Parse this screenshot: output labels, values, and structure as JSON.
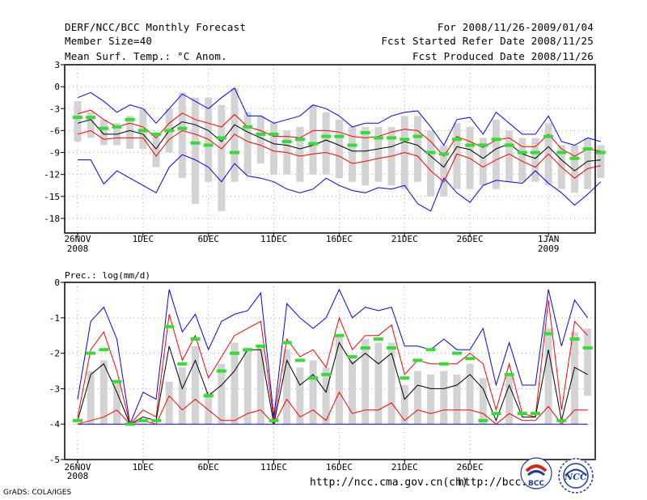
{
  "header": {
    "title": "DERF/NCC/BCC Monthly Forecast",
    "member_size": "Member Size=40",
    "variable": "Mean Surf. Temp.: °C Anom.",
    "period": "For 2008/11/26-2009/01/04",
    "started": "Fcst Started Refer Date 2008/11/25",
    "produced": "Fcst Produced Date 2008/11/26"
  },
  "footer": {
    "grads": "GrADS: COLA/IGES",
    "url1": "http://ncc.cma.gov.cn(ch)",
    "url2": "http://bcc.c",
    "logo_bcc": "BCC",
    "logo_ncc": "NCC"
  },
  "colors": {
    "max_min": "#0000ff",
    "quartile": "#ff0000",
    "median": "#000000",
    "ensemble_mean": "#33dd33",
    "box": "#d3d3d3"
  },
  "chart_data": [
    {
      "type": "box-line",
      "title": "Mean Surf. Temp.: °C Anom.",
      "ylim": [
        -20,
        3
      ],
      "yticks": [
        3,
        0,
        -3,
        -6,
        -9,
        -12,
        -15,
        -18
      ],
      "xticks": [
        {
          "day": 0,
          "label": "26NOV",
          "sub": "2008"
        },
        {
          "day": 5,
          "label": "1DEC"
        },
        {
          "day": 10,
          "label": "6DEC"
        },
        {
          "day": 15,
          "label": "11DEC"
        },
        {
          "day": 20,
          "label": "16DEC"
        },
        {
          "day": 25,
          "label": "21DEC"
        },
        {
          "day": 30,
          "label": "26DEC"
        },
        {
          "day": 36,
          "label": "1JAN",
          "sub": "2009"
        }
      ],
      "days": 40,
      "series": [
        {
          "name": "max",
          "values": [
            -1.5,
            -0.8,
            -2,
            -3.5,
            -2.5,
            -3,
            -5,
            -3,
            -1,
            -2,
            -3,
            -1.5,
            -0.2,
            -4,
            -4,
            -5,
            -4.5,
            -4,
            -2.5,
            -3,
            -4,
            -5.5,
            -5,
            -5,
            -4,
            -3.5,
            -3.3,
            -5.5,
            -8,
            -4.5,
            -4.2,
            -6.5,
            -3.5,
            -5,
            -6.5,
            -6.5,
            -4,
            -7.5,
            -8,
            -7,
            -7.5
          ]
        },
        {
          "name": "q75",
          "values": [
            -3.7,
            -3.2,
            -4.5,
            -5.5,
            -5,
            -5.5,
            -7,
            -5,
            -3.6,
            -4.5,
            -5,
            -5.5,
            -3.8,
            -5.5,
            -6,
            -6.8,
            -6.8,
            -7,
            -6,
            -6,
            -6.2,
            -6.8,
            -7,
            -6.8,
            -6.2,
            -5.8,
            -6,
            -7.5,
            -9.5,
            -6.8,
            -7.5,
            -8.3,
            -7.3,
            -7,
            -8.2,
            -8.2,
            -6.5,
            -8.5,
            -9.5,
            -8.5,
            -8.8
          ]
        },
        {
          "name": "median",
          "values": [
            -5,
            -4.5,
            -6.5,
            -6.5,
            -6,
            -6.5,
            -8.5,
            -6,
            -4.8,
            -5.2,
            -6,
            -7.5,
            -5.2,
            -6.2,
            -7,
            -7.8,
            -8,
            -8.5,
            -8,
            -7.3,
            -8,
            -8.8,
            -8.8,
            -8.5,
            -8.2,
            -7.5,
            -8,
            -9.5,
            -11,
            -8.2,
            -8.6,
            -9.8,
            -8.5,
            -7.8,
            -9.2,
            -9.8,
            -8.2,
            -10,
            -11.5,
            -10.2,
            -10
          ]
        },
        {
          "name": "q25",
          "values": [
            -6.5,
            -6,
            -7.2,
            -7,
            -7,
            -7,
            -9.5,
            -7.2,
            -6,
            -6.5,
            -7.2,
            -8.5,
            -6.5,
            -7.5,
            -8,
            -8.8,
            -9,
            -9.5,
            -9.2,
            -9,
            -9.5,
            -10.5,
            -10.2,
            -9.8,
            -9.5,
            -9,
            -9.5,
            -11.5,
            -13,
            -9.2,
            -9.8,
            -11,
            -10,
            -9.2,
            -10.2,
            -11,
            -9.2,
            -11,
            -12.5,
            -11.2,
            -10.8
          ]
        },
        {
          "name": "min",
          "values": [
            -10,
            -10,
            -13.3,
            -11.5,
            -12.5,
            -13.5,
            -14.5,
            -11,
            -9.3,
            -10,
            -11,
            -13,
            -10.5,
            -12.2,
            -12.5,
            -13,
            -14,
            -14.5,
            -14,
            -12.5,
            -13.5,
            -14.2,
            -14.5,
            -13.8,
            -14,
            -13.5,
            -16,
            -17,
            -12.5,
            -14.5,
            -15.8,
            -13.5,
            -12.8,
            -13,
            -13.2,
            -11.5,
            -13.2,
            -14.5,
            -16.2,
            -14.7,
            -13
          ]
        },
        {
          "name": "ensemble_mean",
          "values": [
            -4.2,
            -4.2,
            -5.7,
            -5.5,
            -4.5,
            -6,
            -6.5,
            -6,
            -5.7,
            -7.7,
            -8,
            -7,
            -9,
            -5.5,
            -6.5,
            -6.5,
            -7.5,
            -7.2,
            -7.8,
            -6.8,
            -6.8,
            -8,
            -6.3,
            -7,
            -7,
            -7.2,
            -6.8,
            -9,
            -9.2,
            -7.2,
            -8,
            -8,
            -7.2,
            -8,
            -9,
            -9,
            -6.8,
            -9,
            -9.8,
            -8.5,
            -9
          ]
        },
        {
          "name": "box_top",
          "values": [
            -2,
            -3.5,
            -4.5,
            -5,
            -4,
            -3,
            -6.5,
            -3,
            -0.8,
            -1.5,
            -1.5,
            -2.5,
            -0.2,
            -3.5,
            -4,
            -5,
            -6,
            -5.5,
            -2.5,
            -3.5,
            -4.5,
            -5.5,
            -5.5,
            -5.5,
            -5.5,
            -4,
            -4,
            -6,
            -8,
            -5,
            -5.5,
            -7,
            -4.5,
            -6,
            -7,
            -7,
            -5,
            -8,
            -8,
            -7,
            -8
          ]
        },
        {
          "name": "box_bottom",
          "values": [
            -7.5,
            -7,
            -8,
            -8,
            -8.5,
            -8.5,
            -11,
            -9,
            -12.5,
            -16,
            -13,
            -17,
            -13,
            -12,
            -10.5,
            -12,
            -12,
            -13,
            -12,
            -12,
            -12.5,
            -13,
            -13.5,
            -13,
            -13.5,
            -14,
            -13,
            -15,
            -15,
            -14,
            -14,
            -13.5,
            -14,
            -13,
            -13,
            -13,
            -13.5,
            -14,
            -14.5,
            -14,
            -12.5
          ]
        }
      ]
    },
    {
      "type": "box-line",
      "title": "Prec.: log(mm/d)",
      "ylim": [
        -5,
        0
      ],
      "yticks": [
        0,
        -1,
        -2,
        -3,
        -4,
        -5
      ],
      "xticks": [
        {
          "day": 0,
          "label": "26NOV",
          "sub": "2008"
        },
        {
          "day": 5,
          "label": "1DEC"
        },
        {
          "day": 10,
          "label": "6DEC"
        },
        {
          "day": 15,
          "label": "11DEC"
        },
        {
          "day": 20,
          "label": "16DEC"
        },
        {
          "day": 25,
          "label": "21DEC"
        },
        {
          "day": 30,
          "label": "26DEC"
        }
      ],
      "days": 40,
      "series": [
        {
          "name": "max",
          "values": [
            -3.3,
            -1.1,
            -0.7,
            -1.6,
            -4,
            -3.1,
            -3.3,
            -0.2,
            -1.4,
            -0.9,
            -1.9,
            -1.1,
            -0.9,
            -0.8,
            -0.3,
            -3.8,
            -0.6,
            -1.0,
            -1.3,
            -1.0,
            -0.2,
            -1.0,
            -0.7,
            -0.8,
            -0.7,
            -1.8,
            -1.8,
            -1.9,
            -1.6,
            -1.9,
            -1.9,
            -1.3,
            -2.9,
            -1.7,
            -2.9,
            -2.9,
            -0.2,
            -1.8,
            -0.5,
            -1.0
          ]
        },
        {
          "name": "q75",
          "values": [
            -3.8,
            -1.9,
            -1.4,
            -2.5,
            -4,
            -3.6,
            -3.8,
            -0.9,
            -2.2,
            -1.5,
            -2.7,
            -2.1,
            -1.5,
            -1.3,
            -1.1,
            -3.9,
            -1.6,
            -2.1,
            -1.9,
            -2.4,
            -1.0,
            -1.9,
            -1.5,
            -1.5,
            -1.2,
            -2.6,
            -2.2,
            -2.3,
            -2.3,
            -2.3,
            -2.0,
            -2.3,
            -3.6,
            -2.3,
            -3.7,
            -3.8,
            -0.5,
            -3.6,
            -1.1,
            -1.5
          ]
        },
        {
          "name": "median",
          "values": [
            -3.9,
            -2.6,
            -2.3,
            -3.1,
            -4,
            -3.8,
            -3.9,
            -1.8,
            -3.0,
            -2.2,
            -3.2,
            -2.9,
            -2.5,
            -1.9,
            -1.9,
            -4.0,
            -2.2,
            -2.9,
            -2.6,
            -3.1,
            -1.7,
            -2.3,
            -2.0,
            -2.3,
            -2.0,
            -3.3,
            -2.9,
            -3.0,
            -3.0,
            -2.9,
            -2.6,
            -3.0,
            -3.9,
            -2.9,
            -3.8,
            -3.8,
            -1.9,
            -3.9,
            -2.4,
            -2.6
          ]
        },
        {
          "name": "q25",
          "values": [
            -4,
            -3.9,
            -3.8,
            -3.6,
            -4,
            -3.9,
            -4.0,
            -3.2,
            -3.6,
            -3.3,
            -3.6,
            -3.9,
            -3.9,
            -3.7,
            -3.6,
            -4.0,
            -3.3,
            -3.8,
            -3.6,
            -3.9,
            -3.1,
            -3.7,
            -3.6,
            -3.6,
            -3.4,
            -3.9,
            -3.6,
            -3.7,
            -3.6,
            -3.6,
            -3.6,
            -3.7,
            -4.0,
            -3.7,
            -3.9,
            -3.9,
            -3.5,
            -4.0,
            -3.6,
            -3.6
          ]
        },
        {
          "name": "min",
          "values": [
            -4,
            -4,
            -4,
            -4,
            -4,
            -4,
            -4,
            -4,
            -4,
            -4,
            -4,
            -4,
            -4,
            -4,
            -4,
            -4,
            -4,
            -4,
            -4,
            -4,
            -4,
            -4,
            -4,
            -4,
            -4,
            -4,
            -4,
            -4,
            -4,
            -4,
            -4,
            -4,
            -4,
            -4,
            -4,
            -4,
            -4,
            -4,
            -4,
            -4
          ]
        },
        {
          "name": "ensemble_mean",
          "values": [
            -3.9,
            -2.0,
            -1.9,
            -2.8,
            -4,
            -3.9,
            -3.9,
            -1.25,
            -2.3,
            -1.6,
            -3.2,
            -2.5,
            -2.0,
            -1.9,
            -1.8,
            -3.9,
            -1.7,
            -2.2,
            -2.7,
            -2.6,
            -1.5,
            -2.1,
            -1.85,
            -1.6,
            -1.85,
            -2.7,
            -2.2,
            -1.9,
            -2.3,
            -2.0,
            -2.15,
            -3.9,
            -3.7,
            -2.6,
            -3.7,
            -3.7,
            -1.45,
            -3.9,
            -1.6,
            -1.85
          ]
        },
        {
          "name": "box_top",
          "values": [
            -4,
            -2.5,
            -2.2,
            -2.8,
            -4,
            -4,
            -4,
            -2.8,
            -2.4,
            -1.8,
            -3.1,
            -2.3,
            -1.7,
            -1.9,
            -1.8,
            -4,
            -1.9,
            -2.4,
            -2.2,
            -2.4,
            -1.5,
            -2.2,
            -1.6,
            -1.7,
            -1.7,
            -2.9,
            -2.5,
            -2.6,
            -2.5,
            -2.6,
            -2.3,
            -2.7,
            -4,
            -2.6,
            -4,
            -4,
            -1.3,
            -4,
            -1.4,
            -1.3
          ]
        },
        {
          "name": "box_bottom",
          "values": [
            -4,
            -4,
            -4,
            -4,
            -4,
            -4,
            -4,
            -4,
            -4,
            -4,
            -4,
            -4,
            -4,
            -4,
            -4,
            -4,
            -4,
            -4,
            -4,
            -4,
            -4,
            -4,
            -4,
            -4,
            -4,
            -4,
            -4,
            -4,
            -4,
            -4,
            -4,
            -4,
            -4,
            -4,
            -4,
            -4,
            -4,
            -4,
            -4,
            -3.2
          ]
        }
      ]
    }
  ]
}
